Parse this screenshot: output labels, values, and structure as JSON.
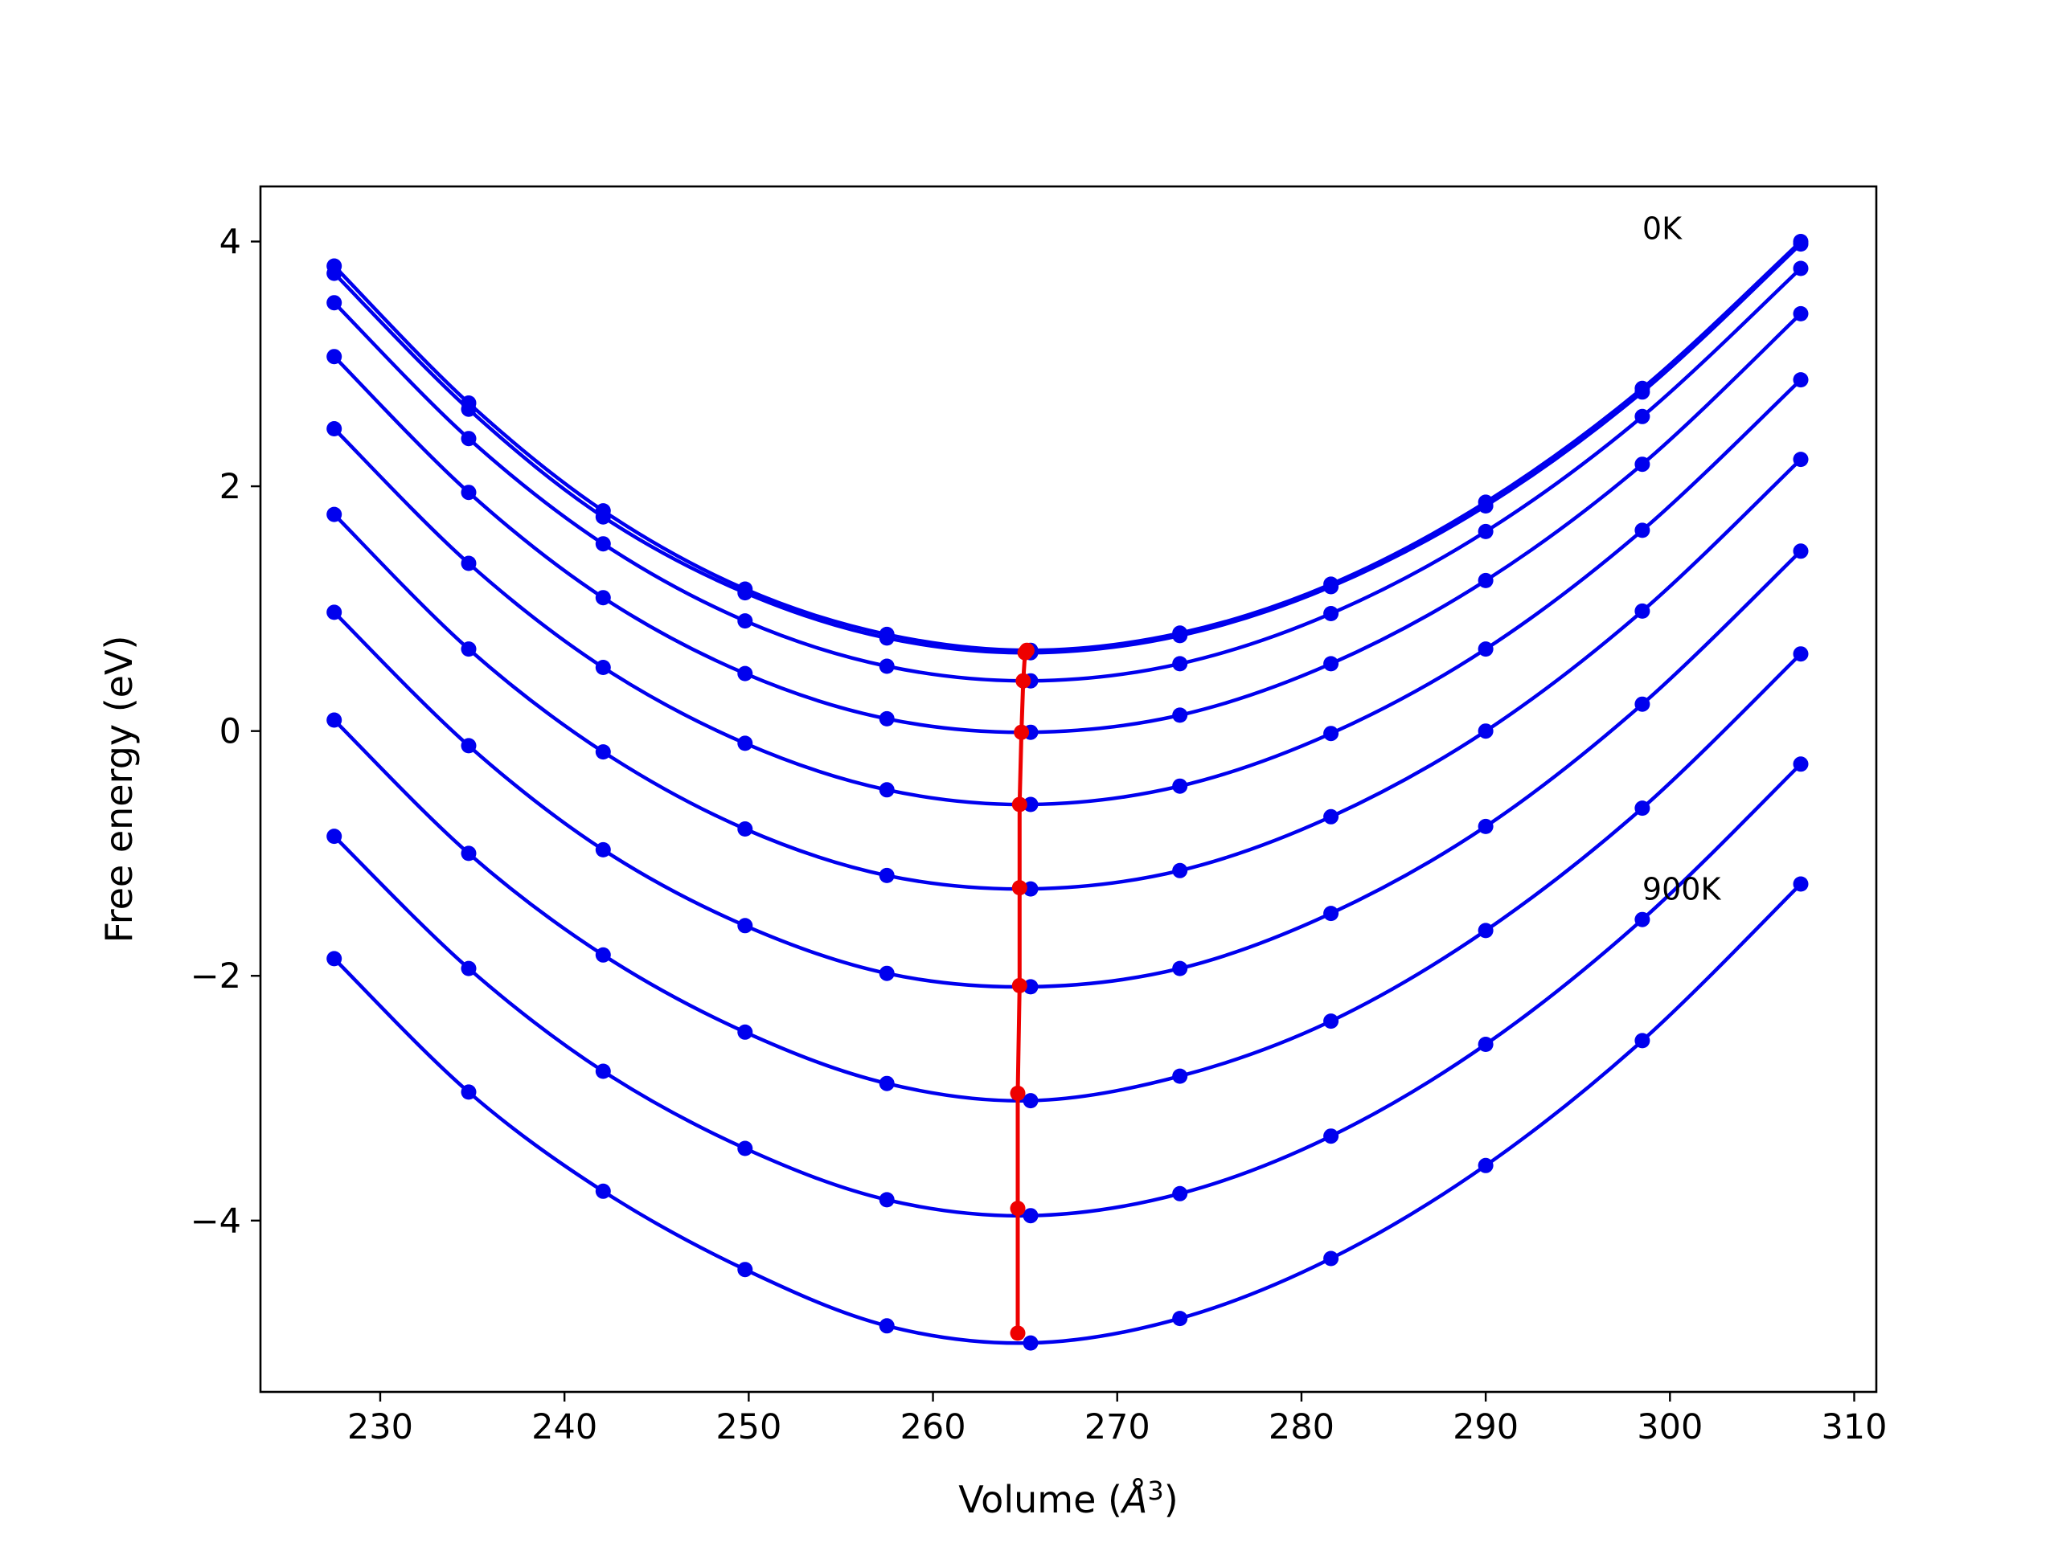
{
  "chart_data": {
    "type": "line",
    "xlabel_text": "Volume (",
    "xlabel_unit_base": "Å",
    "xlabel_unit_sup": "3",
    "xlabel_close": ")",
    "ylabel": "Free energy (eV)",
    "xlim": [
      223.5,
      311.2
    ],
    "ylim": [
      -5.4,
      4.45
    ],
    "xticks": [
      230,
      240,
      250,
      260,
      270,
      280,
      290,
      300,
      310
    ],
    "xtick_labels": [
      "230",
      "240",
      "250",
      "260",
      "270",
      "280",
      "290",
      "300",
      "310"
    ],
    "yticks": [
      -4,
      -2,
      0,
      2,
      4
    ],
    "ytick_labels": [
      "−4",
      "−2",
      "0",
      "2",
      "4"
    ],
    "volumes": [
      227.5,
      234.8,
      242.1,
      249.8,
      257.5,
      265.3,
      273.4,
      281.6,
      290.0,
      298.5,
      307.1
    ],
    "series": [
      {
        "energies": [
          3.8,
          2.68,
          1.8,
          1.16,
          0.79,
          0.66,
          0.8,
          1.2,
          1.87,
          2.8,
          4.0
        ],
        "min_volume": 265.1,
        "min_energy": 0.66
      },
      {
        "energies": [
          3.74,
          2.63,
          1.75,
          1.13,
          0.76,
          0.64,
          0.78,
          1.18,
          1.84,
          2.77,
          3.98
        ],
        "min_volume": 265.0,
        "min_energy": 0.64
      },
      {
        "energies": [
          3.5,
          2.39,
          1.53,
          0.9,
          0.53,
          0.41,
          0.55,
          0.96,
          1.63,
          2.57,
          3.78
        ],
        "min_volume": 264.9,
        "min_energy": 0.41
      },
      {
        "energies": [
          3.06,
          1.95,
          1.09,
          0.47,
          0.1,
          -0.01,
          0.13,
          0.55,
          1.23,
          2.18,
          3.41
        ],
        "min_volume": 264.8,
        "min_energy": -0.01
      },
      {
        "energies": [
          2.47,
          1.37,
          0.52,
          -0.1,
          -0.48,
          -0.6,
          -0.45,
          -0.02,
          0.67,
          1.64,
          2.87
        ],
        "min_volume": 264.7,
        "min_energy": -0.6
      },
      {
        "energies": [
          1.77,
          0.67,
          -0.17,
          -0.8,
          -1.18,
          -1.29,
          -1.14,
          -0.7,
          0.0,
          0.98,
          2.22
        ],
        "min_volume": 264.7,
        "min_energy": -1.28
      },
      {
        "energies": [
          0.97,
          -0.12,
          -0.97,
          -1.59,
          -1.98,
          -2.09,
          -1.94,
          -1.49,
          -0.78,
          0.22,
          1.47
        ],
        "min_volume": 264.7,
        "min_energy": -2.08
      },
      {
        "energies": [
          0.09,
          -1.0,
          -1.83,
          -2.46,
          -2.88,
          -3.02,
          -2.82,
          -2.37,
          -1.63,
          -0.63,
          0.63
        ],
        "min_volume": 264.6,
        "min_energy": -2.96
      },
      {
        "energies": [
          -0.86,
          -1.94,
          -2.78,
          -3.41,
          -3.83,
          -3.96,
          -3.78,
          -3.31,
          -2.56,
          -1.54,
          -0.27
        ],
        "min_volume": 264.6,
        "min_energy": -3.9
      },
      {
        "energies": [
          -1.86,
          -2.95,
          -3.76,
          -4.4,
          -4.86,
          -5.0,
          -4.8,
          -4.31,
          -3.55,
          -2.53,
          -1.25
        ],
        "min_volume": 264.6,
        "min_energy": -4.92
      }
    ],
    "series_color": "#0000ee",
    "minimum_path_color": "#ee0000",
    "annotations": [
      {
        "text": "0K",
        "x": 298.5,
        "y": 4.1
      },
      {
        "text": "900K",
        "x": 298.5,
        "y": -1.3
      }
    ],
    "grid": false,
    "legend": "none"
  }
}
